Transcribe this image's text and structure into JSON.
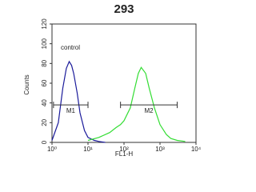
{
  "chart_data": {
    "type": "line",
    "title": "293",
    "xlabel": "FL1-H",
    "ylabel": "Counts",
    "annotation": "control",
    "xscale": "log",
    "xlim": [
      1,
      10000
    ],
    "xticks": [
      {
        "value": 1,
        "label": "10⁰"
      },
      {
        "value": 10,
        "label": "10¹"
      },
      {
        "value": 100,
        "label": "10²"
      },
      {
        "value": 1000,
        "label": "10³"
      },
      {
        "value": 10000,
        "label": "10⁴"
      }
    ],
    "ylim": [
      0,
      120
    ],
    "yticks": [
      0,
      20,
      40,
      60,
      80,
      100,
      120
    ],
    "series": [
      {
        "color": "#1a1a9a",
        "x": [
          1,
          1.5,
          2,
          2.5,
          3,
          3.5,
          4,
          5,
          6,
          8,
          10,
          15,
          20,
          30
        ],
        "values": [
          2,
          20,
          55,
          75,
          82,
          78,
          70,
          50,
          30,
          12,
          5,
          2,
          1,
          0
        ]
      },
      {
        "color": "#33dd33",
        "x": [
          10,
          20,
          40,
          60,
          80,
          100,
          150,
          200,
          250,
          300,
          400,
          500,
          700,
          1000,
          1500,
          2000,
          3000,
          5000
        ],
        "values": [
          2,
          5,
          10,
          15,
          18,
          22,
          35,
          55,
          70,
          76,
          70,
          55,
          35,
          18,
          8,
          4,
          2,
          1
        ]
      }
    ],
    "markers": [
      {
        "label": "M1",
        "x": [
          1.1,
          10
        ],
        "y": 38
      },
      {
        "label": "M2",
        "x": [
          80,
          3000
        ],
        "y": 38
      }
    ]
  }
}
